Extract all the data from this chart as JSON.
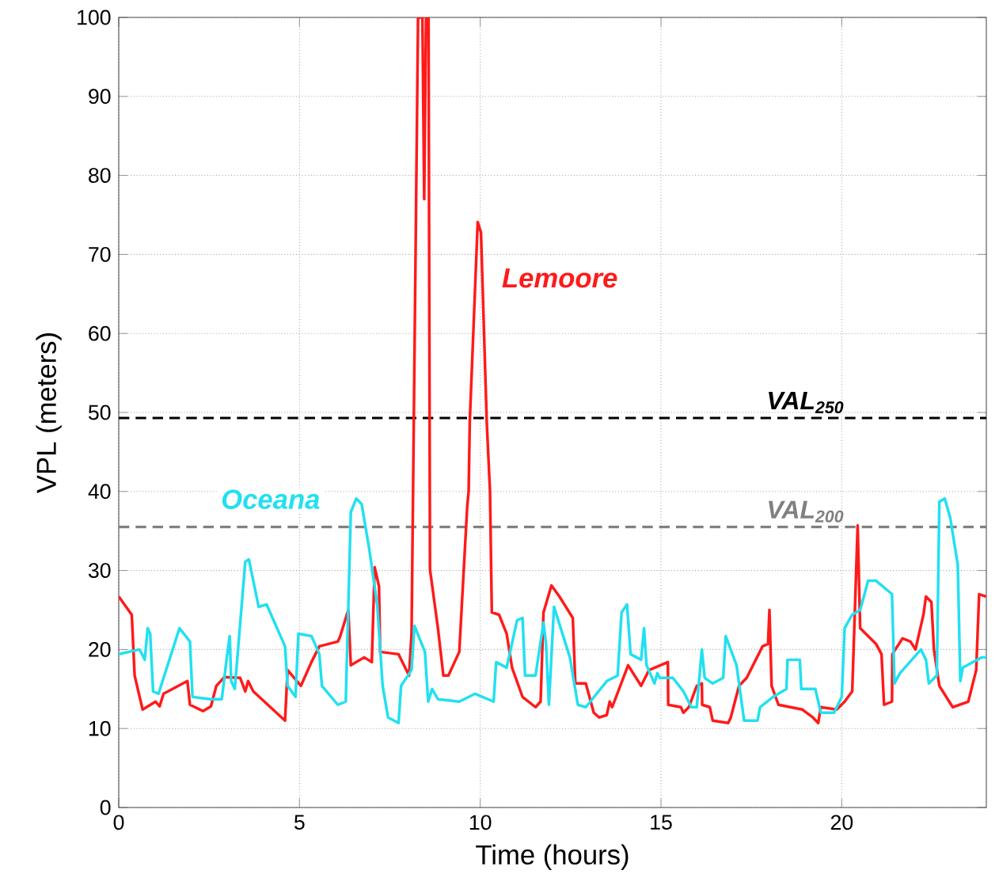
{
  "chart_data": {
    "type": "line",
    "xlabel": "Time (hours)",
    "ylabel": "VPL (meters)",
    "xlim": [
      0,
      24
    ],
    "ylim": [
      0,
      100
    ],
    "xticks": [
      0,
      5,
      10,
      15,
      20
    ],
    "yticks": [
      0,
      10,
      20,
      30,
      40,
      50,
      60,
      70,
      80,
      90,
      100
    ],
    "grid": true,
    "series": [
      {
        "name": "Lemoore",
        "color": "#ff1a1a",
        "x": [
          0,
          0.36,
          0.44,
          0.66,
          1.02,
          1.13,
          1.24,
          1.9,
          1.97,
          2.33,
          2.55,
          2.7,
          2.92,
          3.36,
          3.5,
          3.58,
          3.72,
          4.6,
          4.67,
          5.04,
          5.33,
          5.55,
          6.06,
          6.12,
          6.35,
          6.42,
          6.79,
          7.0,
          7.08,
          7.2,
          7.23,
          7.74,
          8.03,
          8.1,
          8.28,
          8.4,
          8.45,
          8.5,
          8.57,
          8.61,
          8.83,
          8.98,
          9.12,
          9.42,
          9.64,
          9.68,
          9.71,
          9.93,
          10.02,
          10.18,
          10.27,
          10.32,
          10.52,
          10.73,
          10.88,
          11.17,
          11.53,
          11.67,
          11.75,
          11.97,
          12.19,
          12.56,
          12.63,
          12.92,
          13.14,
          13.29,
          13.5,
          13.58,
          13.65,
          14.09,
          14.45,
          14.67,
          15.19,
          15.2,
          15.55,
          15.62,
          15.77,
          15.99,
          16.13,
          16.14,
          16.35,
          16.43,
          16.86,
          16.93,
          17.16,
          17.37,
          17.81,
          17.96,
          18.0,
          18.06,
          18.25,
          18.91,
          19.2,
          19.35,
          19.42,
          19.86,
          20.08,
          20.29,
          20.44,
          20.51,
          20.95,
          21.1,
          21.17,
          21.39,
          21.4,
          21.68,
          21.9,
          22.04,
          22.26,
          22.33,
          22.48,
          22.55,
          22.7,
          23.07,
          23.5,
          23.72,
          23.8,
          24
        ],
        "values": [
          26.7,
          24.4,
          16.7,
          12.4,
          13.4,
          12.8,
          14.4,
          16.0,
          13.0,
          12.2,
          12.8,
          15.4,
          16.5,
          16.4,
          14.7,
          16.0,
          14.7,
          11.0,
          17.4,
          15.4,
          18.4,
          20.4,
          21.0,
          21.6,
          25.0,
          18.0,
          19.0,
          18.4,
          30.4,
          28.0,
          19.7,
          19.4,
          16.7,
          22.0,
          100,
          100,
          77,
          100,
          100,
          30.1,
          22.7,
          16.7,
          16.7,
          19.7,
          38.1,
          40.1,
          48.8,
          74.1,
          72.8,
          48.8,
          40,
          24.7,
          24.4,
          22.0,
          17.7,
          14.0,
          12.7,
          13.4,
          24.7,
          28.1,
          26.7,
          24.0,
          15.7,
          15.7,
          12.0,
          11.4,
          11.7,
          13.4,
          12.7,
          18.0,
          15.4,
          17.4,
          18.4,
          13.0,
          12.7,
          12.0,
          12.7,
          15.4,
          15.7,
          13.0,
          12.7,
          11.0,
          10.7,
          11.4,
          15.4,
          16.4,
          20.4,
          20.7,
          25.0,
          15.4,
          13.0,
          12.4,
          11.4,
          10.7,
          12.7,
          12.4,
          13.4,
          14.7,
          35.7,
          22.7,
          20.7,
          19.4,
          13.0,
          13.4,
          19.4,
          21.4,
          21.0,
          20.0,
          24.4,
          26.7,
          26.0,
          20.0,
          15.4,
          12.7,
          13.4,
          17.4,
          27.0,
          26.7
        ]
      },
      {
        "name": "Oceana",
        "color": "#22e0f0",
        "x": [
          0,
          0.58,
          0.72,
          0.8,
          0.87,
          0.95,
          1.1,
          1.68,
          1.97,
          2.04,
          2.55,
          2.85,
          2.99,
          3.07,
          3.11,
          3.21,
          3.5,
          3.6,
          3.87,
          4.09,
          4.6,
          4.67,
          4.89,
          4.97,
          5.33,
          5.55,
          5.62,
          6.06,
          6.28,
          6.42,
          6.57,
          6.72,
          6.93,
          7.15,
          7.3,
          7.45,
          7.74,
          7.81,
          8.1,
          8.18,
          8.47,
          8.56,
          8.67,
          8.83,
          9.42,
          9.86,
          10.37,
          10.44,
          10.73,
          11.02,
          11.17,
          11.24,
          11.53,
          11.75,
          11.82,
          11.9,
          12.04,
          12.48,
          12.7,
          12.92,
          13.5,
          13.8,
          13.91,
          14.06,
          14.16,
          14.45,
          14.53,
          14.6,
          14.82,
          14.9,
          14.97,
          15.33,
          15.62,
          15.84,
          15.99,
          16.13,
          16.21,
          16.43,
          16.72,
          16.79,
          17.09,
          17.3,
          17.67,
          17.74,
          18.1,
          18.47,
          18.5,
          18.84,
          18.88,
          19.27,
          19.42,
          19.79,
          20.0,
          20.08,
          20.29,
          20.51,
          20.73,
          20.95,
          21.39,
          21.46,
          21.61,
          22.19,
          22.33,
          22.41,
          22.63,
          22.7,
          22.85,
          23.0,
          23.21,
          23.28,
          23.35,
          23.87,
          24
        ],
        "values": [
          19.4,
          20.0,
          18.7,
          22.7,
          22.0,
          14.7,
          14.4,
          22.7,
          21.0,
          14.0,
          13.7,
          13.7,
          19.0,
          21.7,
          16.0,
          15.0,
          31.1,
          31.4,
          25.4,
          25.7,
          20.4,
          15.4,
          14.0,
          22.0,
          21.7,
          19.4,
          15.4,
          13.0,
          13.4,
          37.4,
          39.1,
          38.4,
          32.7,
          25.7,
          15.4,
          11.4,
          10.7,
          15.4,
          17.4,
          23.0,
          19.7,
          13.4,
          15.0,
          13.7,
          13.4,
          14.4,
          13.4,
          18.4,
          17.7,
          23.7,
          24.0,
          16.7,
          16.7,
          23.4,
          20.7,
          13.0,
          25.4,
          19.0,
          13.0,
          12.7,
          16.0,
          16.7,
          24.7,
          25.7,
          19.4,
          18.7,
          22.7,
          18.0,
          15.7,
          17.0,
          16.4,
          16.4,
          14.7,
          12.7,
          12.7,
          20.0,
          16.4,
          15.7,
          16.4,
          21.7,
          18.0,
          11.0,
          11.0,
          12.7,
          14.0,
          15.0,
          18.7,
          18.7,
          15.0,
          15.0,
          12.0,
          12.0,
          14.0,
          22.7,
          24.4,
          25.0,
          28.7,
          28.7,
          27.0,
          15.7,
          17.0,
          20.0,
          18.7,
          15.7,
          16.7,
          38.7,
          39.1,
          36.7,
          30.7,
          16.0,
          17.7,
          19.0,
          19.0
        ]
      }
    ],
    "ref_lines": [
      {
        "axis": "y",
        "value": 49.3,
        "label": "VAL$_{250}$",
        "color": "#000000",
        "line_style": "dashed"
      },
      {
        "axis": "y",
        "value": 35.5,
        "label": "VAL$_{200}$",
        "color": "#808080",
        "line_style": "dashed"
      }
    ]
  }
}
